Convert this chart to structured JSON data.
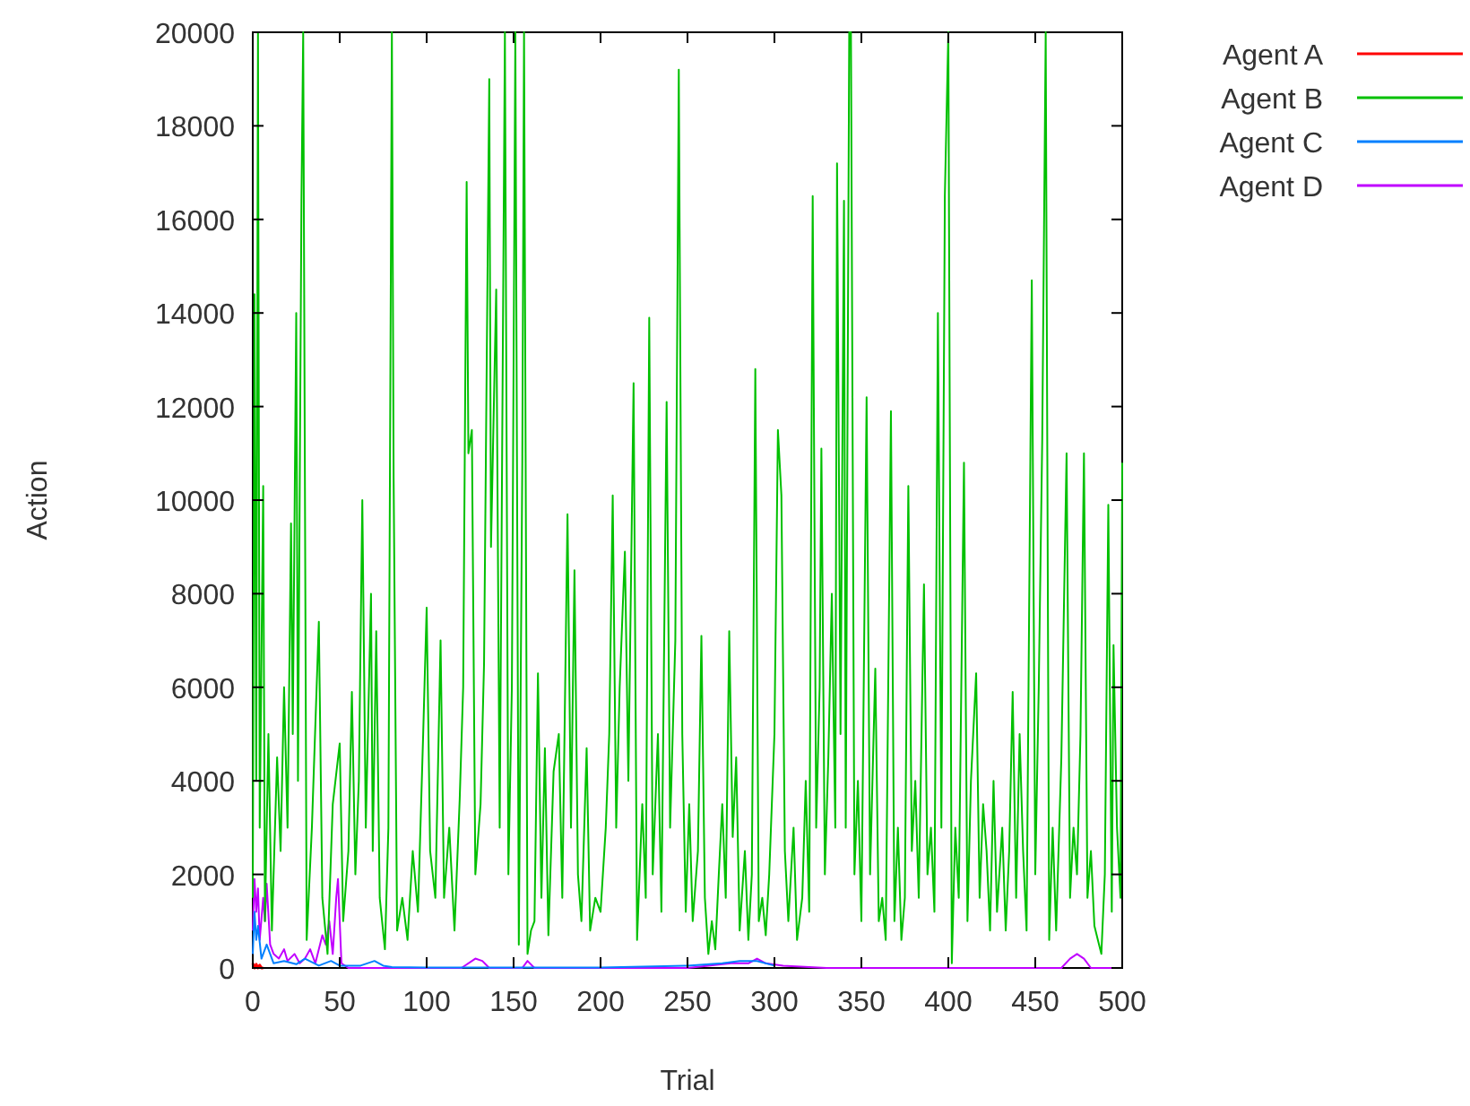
{
  "chart_data": {
    "type": "line",
    "xlabel": "Trial",
    "ylabel": "Action",
    "xlim": [
      0,
      500
    ],
    "ylim": [
      0,
      20000
    ],
    "xticks": [
      0,
      50,
      100,
      150,
      200,
      250,
      300,
      350,
      400,
      450,
      500
    ],
    "yticks": [
      0,
      2000,
      4000,
      6000,
      8000,
      10000,
      12000,
      14000,
      16000,
      18000,
      20000
    ],
    "grid": false,
    "legend": "top right",
    "marker": "none",
    "line_style": "solid",
    "series": [
      {
        "name": "Agent A",
        "color": "#ff0000",
        "x": [
          0,
          1,
          2,
          3,
          4,
          5,
          6
        ],
        "values": [
          100,
          0,
          80,
          0,
          60,
          0,
          0
        ]
      },
      {
        "name": "Agent B",
        "color": "#00c000",
        "x": [
          0,
          1,
          2,
          3,
          4,
          6,
          7,
          9,
          11,
          14,
          16,
          18,
          20,
          22,
          23,
          25,
          26,
          28,
          29,
          31,
          34,
          38,
          40,
          43,
          46,
          50,
          52,
          55,
          57,
          59,
          61,
          63,
          65,
          68,
          69,
          71,
          73,
          76,
          78,
          80,
          81,
          83,
          86,
          89,
          92,
          95,
          98,
          100,
          102,
          105,
          108,
          110,
          113,
          116,
          119,
          121,
          123,
          124,
          126,
          128,
          131,
          133,
          136,
          137,
          140,
          142,
          145,
          147,
          149,
          151,
          153,
          155,
          156,
          158,
          160,
          162,
          164,
          166,
          168,
          170,
          173,
          176,
          178,
          181,
          183,
          185,
          187,
          189,
          192,
          194,
          197,
          200,
          203,
          205,
          207,
          209,
          211,
          214,
          216,
          219,
          221,
          224,
          226,
          228,
          230,
          233,
          235,
          238,
          240,
          243,
          245,
          247,
          249,
          251,
          253,
          256,
          258,
          260,
          262,
          264,
          266,
          268,
          270,
          272,
          274,
          276,
          278,
          280,
          283,
          285,
          287,
          289,
          291,
          293,
          295,
          297,
          300,
          302,
          304,
          306,
          308,
          311,
          313,
          316,
          318,
          320,
          322,
          324,
          326,
          327,
          329,
          331,
          333,
          335,
          336,
          338,
          340,
          341,
          343,
          344,
          346,
          348,
          350,
          353,
          355,
          358,
          360,
          362,
          364,
          367,
          369,
          371,
          373,
          375,
          377,
          379,
          381,
          383,
          386,
          388,
          390,
          392,
          394,
          396,
          398,
          400,
          402,
          404,
          406,
          409,
          411,
          413,
          416,
          418,
          420,
          422,
          424,
          426,
          428,
          431,
          433,
          435,
          437,
          439,
          441,
          443,
          445,
          448,
          450,
          452,
          454,
          456,
          458,
          460,
          462,
          465,
          468,
          470,
          472,
          474,
          476,
          478,
          480,
          482,
          484,
          486,
          488,
          490,
          492,
          494,
          495,
          497,
          499,
          500
        ],
        "values": [
          1500,
          14400,
          4000,
          20000,
          3000,
          10300,
          1000,
          5000,
          800,
          4500,
          2500,
          6000,
          3000,
          9500,
          5000,
          14000,
          4000,
          16400,
          20000,
          600,
          3000,
          7400,
          1500,
          300,
          3500,
          4800,
          1000,
          2500,
          5900,
          2000,
          4000,
          10000,
          3000,
          8000,
          2500,
          7200,
          1500,
          400,
          3000,
          20000,
          10500,
          800,
          1500,
          600,
          2500,
          1200,
          5000,
          7700,
          2500,
          1500,
          7000,
          1500,
          3000,
          800,
          3600,
          6000,
          16800,
          11000,
          11500,
          2000,
          3500,
          6500,
          19000,
          9000,
          14500,
          3000,
          20000,
          2000,
          6000,
          20000,
          500,
          10800,
          20000,
          300,
          800,
          1000,
          6300,
          1500,
          4700,
          700,
          4200,
          5000,
          1500,
          9700,
          3000,
          8500,
          2000,
          1000,
          4700,
          800,
          1500,
          1200,
          3000,
          5000,
          10100,
          3000,
          6000,
          8900,
          4000,
          12500,
          600,
          3500,
          1500,
          13900,
          2000,
          5000,
          1200,
          12100,
          3000,
          7000,
          19200,
          5000,
          1200,
          3500,
          1000,
          2500,
          7100,
          1500,
          300,
          1000,
          400,
          2000,
          3500,
          1500,
          7200,
          2800,
          4500,
          800,
          2500,
          600,
          2000,
          12800,
          1000,
          1500,
          700,
          2000,
          5000,
          11500,
          10100,
          2500,
          1000,
          3000,
          600,
          1500,
          4000,
          1200,
          16500,
          3000,
          6000,
          11100,
          2000,
          4500,
          8000,
          3000,
          17200,
          5000,
          16400,
          3000,
          20000,
          20000,
          2000,
          4000,
          1000,
          12200,
          2000,
          6400,
          1000,
          1500,
          600,
          11900,
          1000,
          3000,
          600,
          1500,
          10300,
          2500,
          4000,
          1500,
          8200,
          2000,
          3000,
          1200,
          14000,
          3000,
          16500,
          20000,
          100,
          3000,
          1500,
          10800,
          1000,
          4000,
          6300,
          1500,
          3500,
          2500,
          800,
          4000,
          1200,
          3000,
          800,
          2500,
          5900,
          1500,
          5000,
          2500,
          800,
          14700,
          2000,
          6000,
          11300,
          20000,
          600,
          3000,
          800,
          4500,
          11000,
          1500,
          3000,
          2000,
          5000,
          11000,
          1500,
          2500,
          900,
          600,
          300,
          2000,
          9900,
          1200,
          6900,
          3000,
          1500,
          10800
        ]
      },
      {
        "name": "Agent C",
        "color": "#0080ff",
        "x": [
          0,
          1,
          2,
          3,
          5,
          8,
          12,
          18,
          25,
          30,
          38,
          45,
          50,
          62,
          70,
          75,
          80,
          100,
          150,
          200,
          250,
          270,
          280,
          290,
          300
        ],
        "values": [
          300,
          1200,
          600,
          900,
          200,
          500,
          100,
          150,
          80,
          200,
          50,
          150,
          50,
          50,
          150,
          50,
          20,
          10,
          10,
          10,
          50,
          100,
          150,
          150,
          50
        ]
      },
      {
        "name": "Agent D",
        "color": "#c000ff",
        "x": [
          0,
          1,
          2,
          3,
          4,
          6,
          7,
          8,
          10,
          12,
          15,
          18,
          20,
          24,
          27,
          30,
          33,
          36,
          40,
          42,
          44,
          46,
          48,
          49,
          51,
          55,
          120,
          128,
          132,
          136,
          155,
          158,
          162,
          250,
          275,
          285,
          290,
          295,
          305,
          330,
          350,
          465,
          470,
          474,
          478,
          482,
          500
        ],
        "values": [
          800,
          1900,
          1200,
          1700,
          600,
          1500,
          1000,
          1800,
          500,
          300,
          200,
          400,
          150,
          300,
          100,
          200,
          400,
          100,
          700,
          500,
          1000,
          300,
          1500,
          1900,
          100,
          0,
          0,
          200,
          150,
          0,
          0,
          150,
          0,
          0,
          100,
          100,
          200,
          100,
          50,
          0,
          0,
          0,
          200,
          300,
          200,
          0,
          0
        ]
      }
    ]
  }
}
